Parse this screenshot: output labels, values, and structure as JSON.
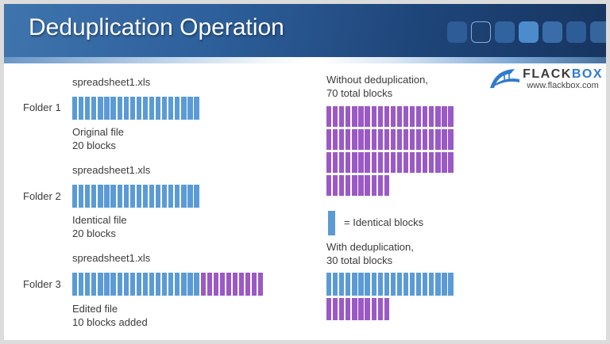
{
  "header": {
    "title": "Deduplication Operation",
    "decor_squares": [
      {
        "fill": "#2d5c96"
      },
      {
        "fill": "none",
        "border": "#8fa9cc"
      },
      {
        "fill": "#31649f"
      },
      {
        "fill": "#4c8ccd"
      },
      {
        "fill": "#3a6ca8"
      },
      {
        "fill": "#2d5d97"
      },
      {
        "fill": "#36659e"
      }
    ]
  },
  "logo": {
    "brand_dark": "FLACK",
    "brand_blue": "BOX",
    "website": "www.flackbox.com",
    "icon_color": "#2f7ad1"
  },
  "colors": {
    "blue": "#5B9BD5",
    "purple": "#9B59C6"
  },
  "folders": [
    {
      "label": "Folder 1",
      "file": "spreadsheet1.xls",
      "caption": "Original file\n20 blocks",
      "blocks": [
        {
          "color": "blue",
          "count": 20
        }
      ]
    },
    {
      "label": "Folder 2",
      "file": "spreadsheet1.xls",
      "caption": "Identical file\n20 blocks",
      "blocks": [
        {
          "color": "blue",
          "count": 20
        }
      ]
    },
    {
      "label": "Folder 3",
      "file": "spreadsheet1.xls",
      "caption": "Edited file\n10 blocks added",
      "blocks": [
        {
          "color": "blue",
          "count": 20
        },
        {
          "color": "purple",
          "count": 10
        }
      ]
    }
  ],
  "right": {
    "without": {
      "heading": "Without deduplication,\n70 total blocks",
      "rows": [
        {
          "color": "purple",
          "count": 20
        },
        {
          "color": "purple",
          "count": 20
        },
        {
          "color": "purple",
          "count": 20
        },
        {
          "color": "purple",
          "count": 10
        }
      ]
    },
    "legend": {
      "block_color": "blue",
      "label": "= Identical blocks"
    },
    "with": {
      "heading": "With deduplication,\n30 total blocks",
      "rows": [
        {
          "color": "blue",
          "count": 20
        },
        {
          "color": "purple",
          "count": 10
        }
      ]
    }
  }
}
